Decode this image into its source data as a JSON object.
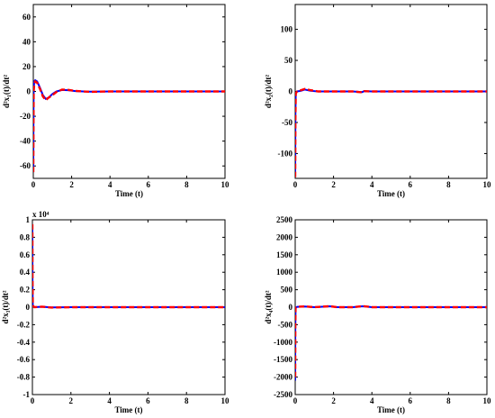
{
  "chart_data": [
    {
      "type": "line",
      "xlabel": "Time (t)",
      "ylabel": "d²x₁(t)/dt²",
      "xlim": [
        0,
        10
      ],
      "ylim": [
        -70,
        70
      ],
      "xticks": [
        0,
        2,
        4,
        6,
        8,
        10
      ],
      "yticks": [
        60,
        40,
        20,
        0,
        -20,
        -40,
        -60
      ],
      "ytick_labels": [
        "60",
        "40",
        "20",
        "0",
        "-20",
        "-40",
        "-60"
      ],
      "multiplier": "",
      "series": [
        {
          "color": "#0000ff",
          "style": "solid",
          "x": [
            0,
            0.01,
            0.02,
            0.05,
            0.1,
            0.2,
            0.35,
            0.5,
            0.65,
            0.8,
            1.0,
            1.2,
            1.5,
            1.8,
            2.2,
            2.6,
            3.0,
            4,
            5,
            6,
            7,
            8,
            9,
            10
          ],
          "y": [
            -65,
            -20,
            2,
            8,
            9,
            8,
            3,
            -3,
            -6,
            -5,
            -2,
            0,
            1.2,
            1,
            0.3,
            0,
            -0.2,
            0,
            0,
            0,
            0,
            0,
            0,
            0
          ]
        },
        {
          "color": "#ff0000",
          "style": "dashed",
          "x": [
            0,
            0.01,
            0.02,
            0.05,
            0.1,
            0.2,
            0.35,
            0.5,
            0.65,
            0.8,
            1.0,
            1.2,
            1.5,
            1.8,
            2.2,
            2.6,
            3.0,
            4,
            5,
            6,
            7,
            8,
            9,
            10
          ],
          "y": [
            -65,
            -25,
            0,
            6,
            8,
            7,
            2,
            -4,
            -7,
            -5,
            -3,
            -0.5,
            1.5,
            1.3,
            0.4,
            0,
            -0.3,
            0,
            0,
            0,
            0,
            0,
            0,
            0
          ]
        }
      ]
    },
    {
      "type": "line",
      "xlabel": "Time (t)",
      "ylabel": "d²x₂(t)/dt²",
      "xlim": [
        0,
        10
      ],
      "ylim": [
        -140,
        140
      ],
      "xticks": [
        0,
        2,
        4,
        6,
        8,
        10
      ],
      "yticks": [
        100,
        50,
        0,
        -50,
        -100
      ],
      "ytick_labels": [
        "100",
        "50",
        "0",
        "-50",
        "-100"
      ],
      "multiplier": "",
      "series": [
        {
          "color": "#0000ff",
          "style": "solid",
          "x": [
            0,
            0.01,
            0.03,
            0.1,
            0.3,
            0.5,
            0.8,
            1.2,
            2,
            3,
            3.5,
            3.6,
            4,
            5,
            6,
            7,
            8,
            9,
            10
          ],
          "y": [
            -135,
            -40,
            -2,
            0,
            1,
            3,
            1,
            0,
            0,
            0,
            -1,
            0.5,
            0,
            0,
            0,
            0,
            0,
            0,
            0
          ]
        },
        {
          "color": "#ff0000",
          "style": "dashed",
          "x": [
            0,
            0.01,
            0.03,
            0.1,
            0.3,
            0.5,
            0.8,
            1.2,
            2,
            3,
            3.5,
            3.6,
            4,
            5,
            6,
            7,
            8,
            9,
            10
          ],
          "y": [
            -138,
            -45,
            -3,
            0,
            2,
            4,
            2,
            0,
            0,
            0,
            -1.5,
            0.5,
            0,
            0,
            0,
            0,
            0,
            0,
            0
          ]
        }
      ]
    },
    {
      "type": "line",
      "xlabel": "Time (t)",
      "ylabel": "d²x₃(t)/dt²",
      "xlim": [
        0,
        10
      ],
      "ylim": [
        -1,
        1
      ],
      "xticks": [
        0,
        2,
        4,
        6,
        8,
        10
      ],
      "yticks": [
        1,
        0.8,
        0.6,
        0.4,
        0.2,
        0,
        -0.2,
        -0.4,
        -0.6,
        -0.8,
        -1
      ],
      "ytick_labels": [
        "1",
        "0.8",
        "0.6",
        "0.4",
        "0.2",
        "0",
        "-0.2",
        "-0.4",
        "-0.6",
        "-0.8",
        "-1"
      ],
      "multiplier": "x 10⁴",
      "series": [
        {
          "color": "#0000ff",
          "style": "solid",
          "x": [
            0,
            0.005,
            0.02,
            0.1,
            0.5,
            1,
            2,
            3,
            4,
            5,
            6,
            7,
            8,
            9,
            10
          ],
          "y": [
            0.9,
            0.3,
            0.01,
            0,
            0.005,
            -0.003,
            0,
            0,
            0,
            0,
            0,
            0,
            0,
            0,
            0
          ]
        },
        {
          "color": "#ff0000",
          "style": "dashed",
          "x": [
            0,
            0.005,
            0.02,
            0.1,
            0.5,
            1,
            2,
            3,
            4,
            5,
            6,
            7,
            8,
            9,
            10
          ],
          "y": [
            0.95,
            0.35,
            0.02,
            0,
            0.006,
            -0.004,
            0,
            0,
            0,
            0,
            0,
            0,
            0,
            0,
            0
          ]
        }
      ]
    },
    {
      "type": "line",
      "xlabel": "Time (t)",
      "ylabel": "d²x₄(t)/dt²",
      "xlim": [
        0,
        10
      ],
      "ylim": [
        -2500,
        2500
      ],
      "xticks": [
        0,
        2,
        4,
        6,
        8,
        10
      ],
      "yticks": [
        2500,
        2000,
        1500,
        1000,
        500,
        0,
        -500,
        -1000,
        -1500,
        -2000,
        -2500
      ],
      "ytick_labels": [
        "2500",
        "2000",
        "1500",
        "1000",
        "500",
        "0",
        "-500",
        "-1000",
        "-1500",
        "-2000",
        "-2500"
      ],
      "multiplier": "",
      "series": [
        {
          "color": "#0000ff",
          "style": "solid",
          "x": [
            0,
            0.005,
            0.02,
            0.1,
            0.5,
            1,
            1.8,
            2.2,
            3,
            3.5,
            3.7,
            4,
            5,
            6,
            7,
            8,
            9,
            10
          ],
          "y": [
            -2100,
            -600,
            -20,
            10,
            20,
            0,
            25,
            0,
            0,
            25,
            20,
            0,
            0,
            0,
            0,
            0,
            0,
            0
          ]
        },
        {
          "color": "#ff0000",
          "style": "dashed",
          "x": [
            0,
            0.005,
            0.02,
            0.1,
            0.5,
            1,
            1.8,
            2.2,
            3,
            3.5,
            3.7,
            4,
            5,
            6,
            7,
            8,
            9,
            10
          ],
          "y": [
            -2000,
            -550,
            -15,
            12,
            22,
            0,
            28,
            0,
            0,
            28,
            22,
            0,
            0,
            0,
            0,
            0,
            0,
            0
          ]
        }
      ]
    }
  ]
}
